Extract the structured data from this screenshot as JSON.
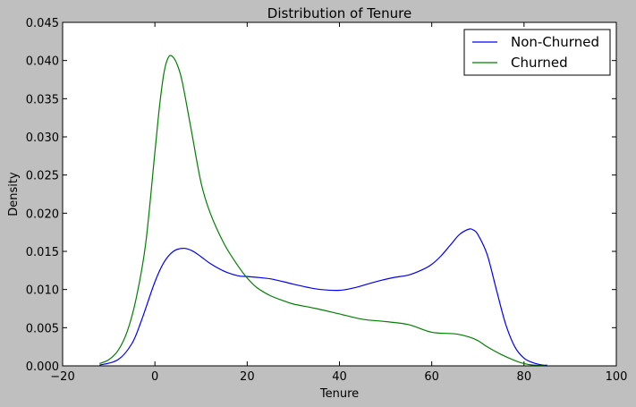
{
  "chart_data": {
    "type": "line",
    "title": "Distribution of Tenure",
    "xlabel": "Tenure",
    "ylabel": "Density",
    "xlim": [
      -20,
      100
    ],
    "ylim": [
      0,
      0.045
    ],
    "xticks": [
      -20,
      0,
      20,
      40,
      60,
      80,
      100
    ],
    "xtick_labels": [
      "−20",
      "0",
      "20",
      "40",
      "60",
      "80",
      "100"
    ],
    "yticks": [
      0,
      0.005,
      0.01,
      0.015,
      0.02,
      0.025,
      0.03,
      0.035,
      0.04,
      0.045
    ],
    "ytick_labels": [
      "0.000",
      "0.005",
      "0.010",
      "0.015",
      "0.020",
      "0.025",
      "0.030",
      "0.035",
      "0.040",
      "0.045"
    ],
    "grid": false,
    "legend_position": "top-right",
    "series": [
      {
        "name": "Non-Churned",
        "color": "#0000ff",
        "x": [
          -12,
          -8,
          -5,
          -3,
          0,
          2,
          4,
          6,
          8,
          10,
          12,
          15,
          18,
          20,
          22,
          25,
          28,
          30,
          33,
          36,
          40,
          43,
          46,
          49,
          52,
          55,
          58,
          60,
          62,
          64,
          66,
          68,
          69,
          70,
          72,
          74,
          76,
          78,
          80,
          82,
          84,
          85
        ],
        "y": [
          0.0001,
          0.0008,
          0.0029,
          0.0058,
          0.011,
          0.0136,
          0.015,
          0.0154,
          0.0151,
          0.0143,
          0.0134,
          0.0124,
          0.0118,
          0.0117,
          0.0116,
          0.0114,
          0.011,
          0.0107,
          0.0103,
          0.01,
          0.0099,
          0.0102,
          0.0107,
          0.0112,
          0.0116,
          0.0119,
          0.0126,
          0.0133,
          0.0144,
          0.0158,
          0.0172,
          0.0179,
          0.0178,
          0.0172,
          0.0146,
          0.01,
          0.0055,
          0.0025,
          0.001,
          0.0004,
          0.0001,
          0.0001
        ]
      },
      {
        "name": "Churned",
        "color": "#008000",
        "x": [
          -12,
          -10,
          -8,
          -6,
          -4,
          -2,
          0,
          1,
          2,
          3,
          4,
          5,
          6,
          8,
          10,
          12,
          15,
          18,
          20,
          22,
          25,
          28,
          30,
          35,
          40,
          45,
          50,
          55,
          60,
          65,
          68,
          70,
          72,
          75,
          78,
          80,
          82,
          85
        ],
        "y": [
          0.0003,
          0.0008,
          0.002,
          0.0045,
          0.009,
          0.016,
          0.028,
          0.034,
          0.0385,
          0.0405,
          0.0404,
          0.0392,
          0.037,
          0.0305,
          0.024,
          0.02,
          0.016,
          0.0131,
          0.0115,
          0.0103,
          0.0092,
          0.0085,
          0.0081,
          0.0075,
          0.0068,
          0.0061,
          0.0058,
          0.0054,
          0.0044,
          0.0042,
          0.0038,
          0.0033,
          0.0025,
          0.0015,
          0.0007,
          0.0003,
          0.0001,
          0.0
        ]
      }
    ]
  }
}
